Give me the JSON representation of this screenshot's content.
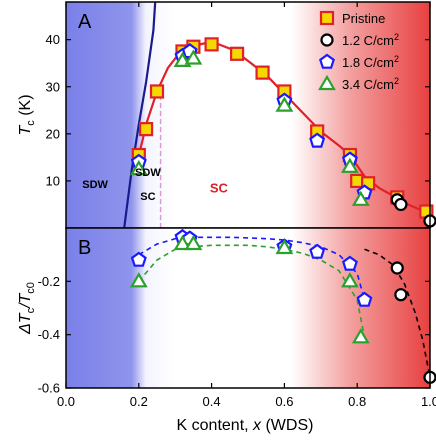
{
  "chart_data": [
    {
      "panel": "A",
      "type": "scatter",
      "ylabel": "T",
      "ylabel_sub": "c",
      "ylabel_unit": " (K)",
      "ylim": [
        0,
        48
      ],
      "yticks": [
        10,
        20,
        30,
        40
      ],
      "xlim": [
        0.0,
        1.0
      ],
      "grid": false,
      "legend_position": "top-right",
      "region_labels": [
        {
          "text": "SDW",
          "x": 0.08,
          "y": 8.5,
          "color": "#000000"
        },
        {
          "text": "SDW",
          "x": 0.225,
          "y": 11.0,
          "color": "#000000"
        },
        {
          "text": "SC",
          "x": 0.225,
          "y": 6.0,
          "color": "#000000"
        },
        {
          "text": "SC",
          "x": 0.42,
          "y": 7.5,
          "color": "#e0202a"
        }
      ],
      "boundary_line": {
        "x": [
          0.16,
          0.18,
          0.2,
          0.22,
          0.24,
          0.245
        ],
        "y": [
          0,
          12,
          22,
          31,
          42,
          48
        ],
        "color": "#1a1a8c"
      },
      "dashed_boundary": {
        "x": [
          0.26,
          0.26
        ],
        "y": [
          0,
          29
        ],
        "color": "#d99ad9"
      },
      "fit_line": {
        "x": [
          0.2,
          0.21,
          0.22,
          0.25,
          0.28,
          0.31,
          0.34,
          0.38,
          0.42,
          0.46,
          0.5,
          0.55,
          0.6,
          0.65,
          0.7,
          0.75,
          0.78,
          0.82,
          0.86,
          0.9,
          0.94,
          0.97,
          1.0
        ],
        "y": [
          15.5,
          18.5,
          22,
          29,
          34,
          37,
          38.5,
          39.2,
          39,
          37.8,
          35.5,
          32.5,
          28.5,
          24.5,
          20.5,
          17.5,
          15.5,
          11,
          8.5,
          6.8,
          5,
          4,
          3
        ],
        "color": "#e0202a"
      },
      "series": [
        {
          "name": "Pristine",
          "marker": "square",
          "color": "#e0202a",
          "fill": "#f5d800",
          "x": [
            0.2,
            0.22,
            0.25,
            0.32,
            0.35,
            0.4,
            0.47,
            0.54,
            0.6,
            0.69,
            0.78,
            0.8,
            0.83,
            0.91,
            0.99
          ],
          "y": [
            15.5,
            21,
            29,
            37.5,
            38.5,
            39,
            37,
            33,
            29,
            20.5,
            15.5,
            10,
            9.5,
            6.5,
            3.5
          ]
        },
        {
          "name": "1.2 C/cm²",
          "marker": "circle",
          "color": "#000000",
          "fill": "#ffffff",
          "x": [
            0.91,
            0.92,
            1.0
          ],
          "y": [
            6,
            5,
            1.5
          ]
        },
        {
          "name": "1.8 C/cm²",
          "marker": "pentagon",
          "color": "#1a1aff",
          "fill": "#ffffff",
          "x": [
            0.2,
            0.32,
            0.34,
            0.6,
            0.69,
            0.78,
            0.82
          ],
          "y": [
            14,
            36.5,
            37.5,
            27,
            18.5,
            14.5,
            7.5
          ]
        },
        {
          "name": "3.4 C/cm²",
          "marker": "triangle",
          "color": "#2ca02c",
          "fill": "#ffffff",
          "x": [
            0.2,
            0.32,
            0.35,
            0.6,
            0.78,
            0.81
          ],
          "y": [
            12.5,
            35.5,
            36,
            26,
            13,
            6
          ]
        }
      ]
    },
    {
      "panel": "B",
      "type": "scatter",
      "ylabel": "ΔT",
      "ylabel_sub": "c",
      "ylabel_mid": "/T",
      "ylabel_sub2": "c0",
      "ylim": [
        -0.6,
        0.0
      ],
      "yticks": [
        -0.6,
        -0.4,
        -0.2
      ],
      "ytick_labels": [
        "-0.6",
        "-0.4",
        "-0.2"
      ],
      "xlim": [
        0.0,
        1.0
      ],
      "xticks": [
        0.0,
        0.2,
        0.4,
        0.6,
        0.8,
        1.0
      ],
      "xtick_labels": [
        "0.0",
        "0.2",
        "0.4",
        "0.6",
        "0.8",
        "1.0"
      ],
      "xlabel": "K content, x (WDS)",
      "grid": false,
      "guide_lines": [
        {
          "color": "#1a1aff",
          "x": [
            0.2,
            0.25,
            0.3,
            0.35,
            0.4,
            0.45,
            0.5,
            0.55,
            0.6,
            0.65,
            0.7,
            0.75,
            0.8,
            0.82
          ],
          "y": [
            -0.1,
            -0.06,
            -0.04,
            -0.035,
            -0.035,
            -0.035,
            -0.037,
            -0.04,
            -0.045,
            -0.055,
            -0.07,
            -0.1,
            -0.17,
            -0.27
          ]
        },
        {
          "color": "#2ca02c",
          "x": [
            0.2,
            0.25,
            0.3,
            0.35,
            0.4,
            0.45,
            0.5,
            0.55,
            0.6,
            0.65,
            0.7,
            0.75,
            0.8,
            0.82
          ],
          "y": [
            -0.2,
            -0.12,
            -0.08,
            -0.07,
            -0.065,
            -0.065,
            -0.065,
            -0.07,
            -0.08,
            -0.095,
            -0.12,
            -0.16,
            -0.27,
            -0.41
          ]
        },
        {
          "color": "#000000",
          "x": [
            0.82,
            0.86,
            0.9,
            0.93,
            0.96,
            0.98,
            1.0
          ],
          "y": [
            -0.08,
            -0.1,
            -0.14,
            -0.21,
            -0.32,
            -0.42,
            -0.56
          ]
        }
      ],
      "series": [
        {
          "name": "1.2 C/cm²",
          "marker": "circle",
          "color": "#000000",
          "fill": "#ffffff",
          "x": [
            0.91,
            0.92,
            1.0
          ],
          "y": [
            -0.15,
            -0.25,
            -0.56
          ]
        },
        {
          "name": "1.8 C/cm²",
          "marker": "pentagon",
          "color": "#1a1aff",
          "fill": "#ffffff",
          "x": [
            0.2,
            0.32,
            0.34,
            0.6,
            0.69,
            0.78,
            0.82
          ],
          "y": [
            -0.12,
            -0.035,
            -0.04,
            -0.07,
            -0.09,
            -0.135,
            -0.27
          ]
        },
        {
          "name": "3.4 C/cm²",
          "marker": "triangle",
          "color": "#2ca02c",
          "fill": "#ffffff",
          "x": [
            0.2,
            0.32,
            0.35,
            0.6,
            0.78,
            0.81
          ],
          "y": [
            -0.2,
            -0.06,
            -0.06,
            -0.075,
            -0.2,
            -0.41
          ]
        }
      ]
    }
  ],
  "panel_labels": {
    "a": "A",
    "b": "B"
  },
  "region_colors": {
    "sdw": "#7a80e8",
    "sc": "#e84040"
  }
}
